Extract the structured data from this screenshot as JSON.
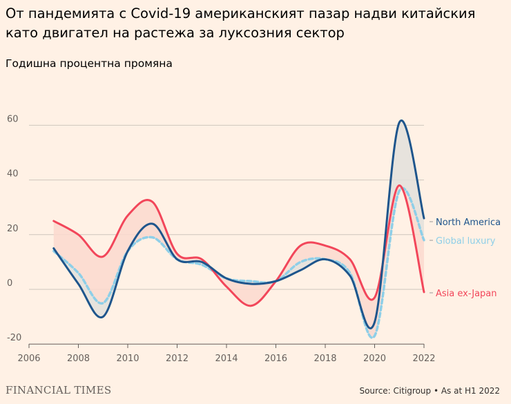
{
  "chart_data": {
    "type": "line",
    "title": "От пандемията с Covid-19 американският пазар надви китайския като двигател на растежа за луксозния сектор",
    "subtitle": "Годишна процентна промяна",
    "xlabel": "",
    "ylabel": "",
    "xlim": [
      2006,
      2022
    ],
    "ylim": [
      -20,
      60
    ],
    "x_ticks": [
      "2006",
      "2008",
      "2010",
      "2012",
      "2014",
      "2016",
      "2018",
      "2020",
      "2022"
    ],
    "y_ticks": [
      "60",
      "40",
      "20",
      "0",
      "-20"
    ],
    "grid": true,
    "legend": "right-inline",
    "x": [
      2007,
      2008,
      2009,
      2010,
      2011,
      2012,
      2013,
      2014,
      2015,
      2016,
      2017,
      2018,
      2019,
      2020,
      2021,
      2022
    ],
    "series": [
      {
        "name": "North America",
        "color": "#1e558c",
        "style": "solid",
        "values": [
          15,
          2,
          -10,
          14,
          24,
          11,
          10,
          4,
          2,
          3,
          7,
          11,
          5,
          -12,
          61,
          26
        ]
      },
      {
        "name": "Global luxury",
        "color": "#8ecfe8",
        "style": "dashed",
        "values": [
          14,
          6,
          -5,
          14,
          19,
          11,
          9,
          4,
          3,
          3,
          10,
          11,
          6,
          -17,
          36,
          18
        ]
      },
      {
        "name": "Asia ex-Japan",
        "color": "#f2465a",
        "style": "solid",
        "values": [
          25,
          20,
          12,
          27,
          32,
          13,
          11,
          1,
          -6,
          3,
          16,
          16,
          11,
          -3,
          38,
          -1
        ]
      }
    ],
    "shading": [
      {
        "between": [
          "North America",
          "Global luxury"
        ],
        "color": "#e3e1dc"
      },
      {
        "between": [
          "Asia ex-Japan",
          "Global luxury"
        ],
        "color": "#fcd9cf"
      }
    ]
  },
  "footer": {
    "brand": "FINANCIAL TIMES",
    "source": "Source: Citigroup • As at H1 2022"
  }
}
